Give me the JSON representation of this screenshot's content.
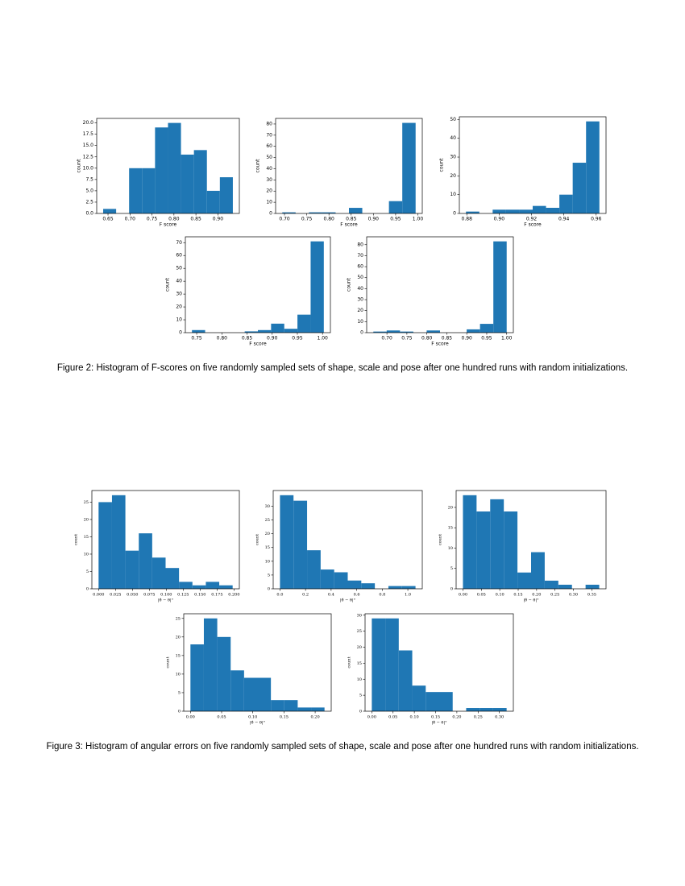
{
  "chart_data": [
    {
      "type": "histogram",
      "xlabel": "F score",
      "ylabel": "count",
      "color": "#1f77b4",
      "bins": [
        0.639,
        0.6685,
        0.698,
        0.7275,
        0.757,
        0.7865,
        0.816,
        0.8455,
        0.875,
        0.9045,
        0.934
      ],
      "counts": [
        1,
        0,
        10,
        10,
        19,
        20,
        13,
        14,
        5,
        8
      ],
      "xlim": [
        0.6243,
        0.9488
      ],
      "ylim": [
        0,
        21
      ],
      "xticks": [
        0.65,
        {
          "value": 0.7,
          "label": "0.70"
        },
        0.75,
        {
          "value": 0.8,
          "label": "0.80"
        },
        0.85,
        {
          "value": 0.9,
          "label": "0.90"
        }
      ],
      "yticks": [
        {
          "value": 0,
          "label": "0.0"
        },
        2.5,
        {
          "value": 5,
          "label": "5.0"
        },
        7.5,
        {
          "value": 10,
          "label": "10.0"
        },
        12.5,
        {
          "value": 15,
          "label": "15.0"
        },
        17.5,
        {
          "value": 20,
          "label": "20.0"
        }
      ]
    },
    {
      "type": "histogram",
      "xlabel": "F score",
      "ylabel": "count",
      "color": "#1f77b4",
      "bins": [
        0.695,
        0.725,
        0.755,
        0.785,
        0.815,
        0.845,
        0.875,
        0.905,
        0.935,
        0.965,
        0.995
      ],
      "counts": [
        1,
        0,
        1,
        1,
        0,
        5,
        0,
        0,
        11,
        81
      ],
      "xlim": [
        0.68,
        1.01
      ],
      "ylim": [
        0,
        85
      ],
      "xticks": [
        {
          "value": 0.7,
          "label": "0.70"
        },
        0.75,
        {
          "value": 0.8,
          "label": "0.80"
        },
        0.85,
        {
          "value": 0.9,
          "label": "0.90"
        },
        0.95,
        {
          "value": 1,
          "label": "1.00"
        }
      ],
      "yticks": [
        0,
        10,
        20,
        30,
        40,
        50,
        60,
        70,
        80
      ]
    },
    {
      "type": "histogram",
      "xlabel": "F score",
      "ylabel": "count",
      "color": "#1f77b4",
      "bins": [
        0.8795,
        0.88775,
        0.896,
        0.90425,
        0.9125,
        0.92075,
        0.929,
        0.93725,
        0.9455,
        0.95375,
        0.962
      ],
      "counts": [
        1,
        0,
        2,
        2,
        2,
        4,
        3,
        10,
        27,
        49
      ],
      "xlim": [
        0.8754,
        0.9661
      ],
      "ylim": [
        0,
        51.45
      ],
      "xticks": [
        0.88,
        {
          "value": 0.9,
          "label": "0.90"
        },
        0.92,
        0.94,
        0.96
      ],
      "yticks": [
        0,
        10,
        20,
        30,
        40,
        50
      ]
    },
    {
      "type": "histogram",
      "xlabel": "F score",
      "ylabel": "count",
      "color": "#1f77b4",
      "bins": [
        0.7406,
        0.7668,
        0.793,
        0.8192,
        0.8454,
        0.8716,
        0.8978,
        0.924,
        0.9502,
        0.9764,
        1.0026
      ],
      "counts": [
        2,
        0,
        0,
        0,
        1,
        2,
        7,
        3,
        14,
        71
      ],
      "xlim": [
        0.7275,
        1.0157
      ],
      "ylim": [
        0,
        74.55
      ],
      "xticks": [
        0.75,
        {
          "value": 0.8,
          "label": "0.80"
        },
        0.85,
        {
          "value": 0.9,
          "label": "0.90"
        },
        0.95,
        {
          "value": 1,
          "label": "1.00"
        }
      ],
      "yticks": [
        0,
        10,
        20,
        30,
        40,
        50,
        60,
        70
      ]
    },
    {
      "type": "histogram",
      "xlabel": "F score",
      "ylabel": "count",
      "color": "#1f77b4",
      "bins": [
        0.666,
        0.6994,
        0.7328,
        0.7662,
        0.7996,
        0.833,
        0.8664,
        0.8998,
        0.9332,
        0.9666,
        1.0
      ],
      "counts": [
        1,
        2,
        1,
        0,
        2,
        0,
        0,
        3,
        8,
        83
      ],
      "xlim": [
        0.6493,
        1.0167
      ],
      "ylim": [
        0,
        87.15
      ],
      "xticks": [
        {
          "value": 0.7,
          "label": "0.70"
        },
        0.75,
        {
          "value": 0.8,
          "label": "0.80"
        },
        0.85,
        {
          "value": 0.9,
          "label": "0.90"
        },
        0.95,
        {
          "value": 1,
          "label": "1.00"
        }
      ],
      "yticks": [
        0,
        10,
        20,
        30,
        40,
        50,
        60,
        70,
        80
      ]
    },
    {
      "type": "histogram",
      "xlabel": "|θ̂ − θ|°",
      "ylabel": "count",
      "color": "#1f77b4",
      "bins": [
        0,
        0.0198,
        0.0396,
        0.0594,
        0.0792,
        0.099,
        0.1188,
        0.1386,
        0.1584,
        0.1782,
        0.198
      ],
      "counts": [
        25,
        27,
        11,
        16,
        9,
        6,
        2,
        1,
        2,
        1
      ],
      "xlim": [
        -0.0099,
        0.2079
      ],
      "ylim": [
        0,
        28.35
      ],
      "xticks": [
        {
          "value": 0,
          "label": "0.000"
        },
        0.025,
        {
          "value": 0.05,
          "label": "0.050"
        },
        0.075,
        {
          "value": 0.1,
          "label": "0.100"
        },
        0.125,
        {
          "value": 0.15,
          "label": "0.150"
        },
        0.175,
        {
          "value": 0.2,
          "label": "0.200"
        }
      ],
      "yticks": [
        0,
        5,
        10,
        15,
        20,
        25
      ]
    },
    {
      "type": "histogram",
      "xlabel": "|θ̂ − θ|°",
      "ylabel": "count",
      "color": "#1f77b4",
      "bins": [
        0,
        0.106,
        0.212,
        0.318,
        0.424,
        0.53,
        0.636,
        0.742,
        0.848,
        0.954,
        1.06
      ],
      "counts": [
        34,
        32,
        14,
        7,
        6,
        3,
        2,
        0,
        1,
        1
      ],
      "xlim": [
        -0.053,
        1.113
      ],
      "ylim": [
        0,
        35.7
      ],
      "xticks": [
        {
          "value": 0,
          "label": "0.0"
        },
        0.2,
        0.4,
        0.6,
        0.8,
        {
          "value": 1,
          "label": "1.0"
        }
      ],
      "yticks": [
        0,
        5,
        10,
        15,
        20,
        25,
        30
      ]
    },
    {
      "type": "histogram",
      "xlabel": "|θ̂ − θ|°",
      "ylabel": "count",
      "color": "#1f77b4",
      "bins": [
        0,
        0.037,
        0.074,
        0.111,
        0.148,
        0.185,
        0.222,
        0.259,
        0.296,
        0.333,
        0.37
      ],
      "counts": [
        23,
        19,
        22,
        19,
        4,
        9,
        2,
        1,
        0,
        1
      ],
      "xlim": [
        -0.0185,
        0.3885
      ],
      "ylim": [
        0,
        24.15
      ],
      "xticks": [
        {
          "value": 0,
          "label": "0.00"
        },
        0.05,
        {
          "value": 0.1,
          "label": "0.10"
        },
        0.15,
        {
          "value": 0.2,
          "label": "0.20"
        },
        0.25,
        {
          "value": 0.3,
          "label": "0.30"
        },
        0.35
      ],
      "yticks": [
        0,
        5,
        10,
        15,
        20
      ]
    },
    {
      "type": "histogram",
      "xlabel": "|θ̂ − θ|°",
      "ylabel": "count",
      "color": "#1f77b4",
      "bins": [
        0,
        0.0215,
        0.043,
        0.0645,
        0.086,
        0.1075,
        0.129,
        0.1505,
        0.172,
        0.1935,
        0.215
      ],
      "counts": [
        18,
        25,
        20,
        11,
        9,
        9,
        3,
        3,
        1,
        1
      ],
      "xlim": [
        -0.01075,
        0.22575
      ],
      "ylim": [
        0,
        26.25
      ],
      "xticks": [
        {
          "value": 0,
          "label": "0.00"
        },
        0.05,
        {
          "value": 0.1,
          "label": "0.10"
        },
        0.15,
        {
          "value": 0.2,
          "label": "0.20"
        }
      ],
      "yticks": [
        0,
        5,
        10,
        15,
        20,
        25
      ]
    },
    {
      "type": "histogram",
      "xlabel": "|θ̂ − θ|°",
      "ylabel": "count",
      "color": "#1f77b4",
      "bins": [
        0,
        0.0317,
        0.0634,
        0.0951,
        0.1268,
        0.1585,
        0.1902,
        0.2219,
        0.2536,
        0.2853,
        0.317
      ],
      "counts": [
        29,
        29,
        19,
        8,
        6,
        6,
        0,
        1,
        1,
        1
      ],
      "xlim": [
        -0.01585,
        0.33285
      ],
      "ylim": [
        0,
        30.45
      ],
      "xticks": [
        {
          "value": 0,
          "label": "0.00"
        },
        0.05,
        {
          "value": 0.1,
          "label": "0.10"
        },
        0.15,
        {
          "value": 0.2,
          "label": "0.20"
        },
        0.25,
        {
          "value": 0.3,
          "label": "0.30"
        }
      ],
      "yticks": [
        0,
        5,
        10,
        15,
        20,
        25,
        30
      ]
    }
  ],
  "captions": [
    "Figure 2: Histogram of F-scores on five randomly sampled sets of shape, scale and pose after one hundred runs with random initializations.",
    "Figure 3: Histogram of angular errors on five randomly sampled sets of shape, scale and pose after one hundred runs with random initializations."
  ]
}
